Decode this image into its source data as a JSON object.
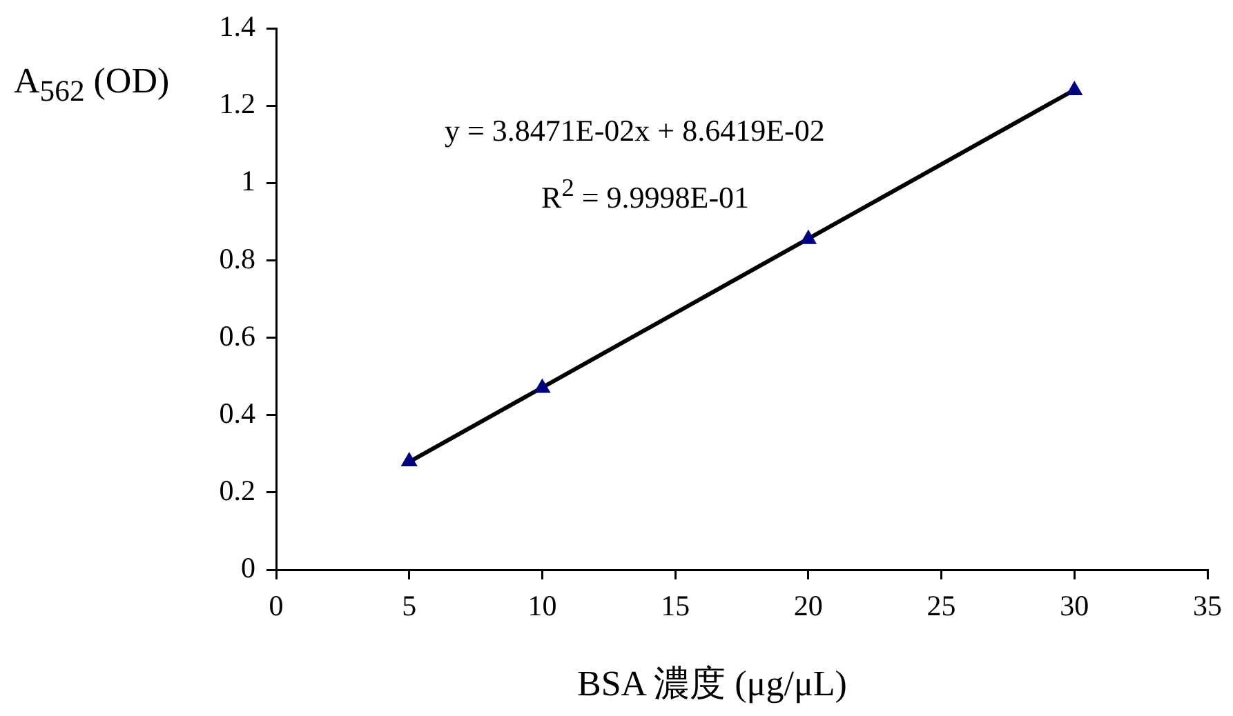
{
  "chart_data": {
    "type": "scatter",
    "xlabel": "BSA 濃度 (μg/μL)",
    "ylabel": "A$_{562}$ (OD)",
    "annotations": [
      "y = 3.8471E-02x + 8.6419E-02",
      "R$^{2}$ = 9.9998E-01"
    ],
    "xlim": [
      0,
      35
    ],
    "xticks": [
      0,
      5,
      10,
      15,
      20,
      25,
      30,
      35
    ],
    "ylim": [
      0,
      1.4
    ],
    "yticks": [
      0,
      0.2,
      0.4,
      0.6,
      0.8,
      1,
      1.2,
      1.4
    ],
    "grid": false,
    "legend": false,
    "series": [
      {
        "type": "scatter",
        "color": "#000080",
        "marker": "triangle",
        "x": [
          5,
          10,
          20,
          30
        ],
        "values": [
          0.28,
          0.47,
          0.855,
          1.24
        ]
      },
      {
        "type": "line",
        "color": "#000000",
        "line_style": "solid",
        "x": [
          5,
          30
        ],
        "values": [
          0.279,
          1.241
        ]
      }
    ]
  }
}
